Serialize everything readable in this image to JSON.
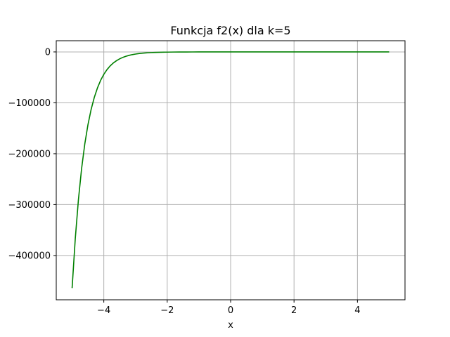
{
  "chart_data": {
    "type": "line",
    "title": "Funkcja f2(x) dla k=5",
    "xlabel": "x",
    "ylabel": "",
    "xlim": [
      -5.5,
      5.5
    ],
    "ylim": [
      -487000,
      22000
    ],
    "grid": true,
    "x_ticks": [
      -4,
      -2,
      0,
      2,
      4
    ],
    "x_tick_labels": [
      "−4",
      "−2",
      "0",
      "2",
      "4"
    ],
    "y_ticks": [
      0,
      -100000,
      -200000,
      -300000,
      -400000
    ],
    "y_tick_labels": [
      "0",
      "−100000",
      "−200000",
      "−300000",
      "−400000"
    ],
    "series": [
      {
        "color": "#008000",
        "x": [
          -5.0,
          -4.9,
          -4.8,
          -4.7,
          -4.6,
          -4.5,
          -4.4,
          -4.3,
          -4.2,
          -4.1,
          -4.0,
          -3.9,
          -3.8,
          -3.7,
          -3.6,
          -3.5,
          -3.4,
          -3.3,
          -3.2,
          -3.1,
          -3.0,
          -2.9,
          -2.8,
          -2.7,
          -2.6,
          -2.5,
          -2.4,
          -2.3,
          -2.2,
          -2.1,
          -2.0,
          -1.8,
          -1.6,
          -1.4,
          -1.2,
          -1.0,
          -0.5,
          0.0,
          0.5,
          1.0,
          2.0,
          3.0,
          4.0,
          5.0
        ],
        "y": [
          -464000,
          -367000,
          -290000,
          -229000,
          -181000,
          -143000,
          -113000,
          -89400,
          -70700,
          -55800,
          -44100,
          -34800,
          -27500,
          -21700,
          -17200,
          -13600,
          -10700,
          -8480,
          -6700,
          -5290,
          -4180,
          -3300,
          -2610,
          -2060,
          -1630,
          -1290,
          -1020,
          -805,
          -636,
          -502,
          -397,
          -248,
          -155,
          -97,
          -60,
          -38,
          -11,
          0,
          0,
          0,
          0,
          0,
          0,
          0
        ]
      }
    ]
  }
}
